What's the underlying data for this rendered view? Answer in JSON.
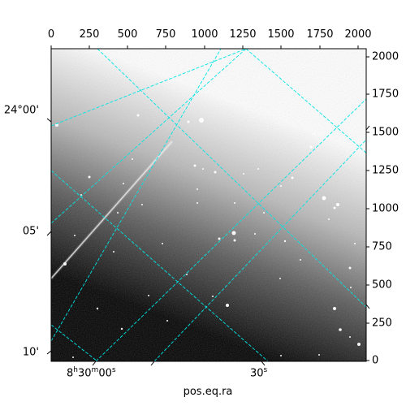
{
  "pixel_axis_top": {
    "ticks": [
      "0",
      "250",
      "500",
      "750",
      "1000",
      "1250",
      "1500",
      "1750",
      "2000"
    ]
  },
  "pixel_axis_right": {
    "ticks": [
      "0",
      "250",
      "500",
      "750",
      "1000",
      "1250",
      "1500",
      "1750",
      "2000"
    ]
  },
  "ra_axis": {
    "label": "pos.eq.ra",
    "ticks": [
      {
        "h": "8",
        "m": "30",
        "s": "00",
        "u_h": "h",
        "u_m": "m",
        "u_s": "s"
      },
      {
        "h": "",
        "m": "",
        "s": "30",
        "u_h": "",
        "u_m": "",
        "u_s": "s"
      }
    ]
  },
  "dec_axis": {
    "ticks": [
      "24°00'",
      "05'",
      "10'"
    ]
  },
  "grid_color": "#00e5e5",
  "image_colormap": "gray",
  "image_content": "star field with a satellite streak and bright gradient in upper right"
}
